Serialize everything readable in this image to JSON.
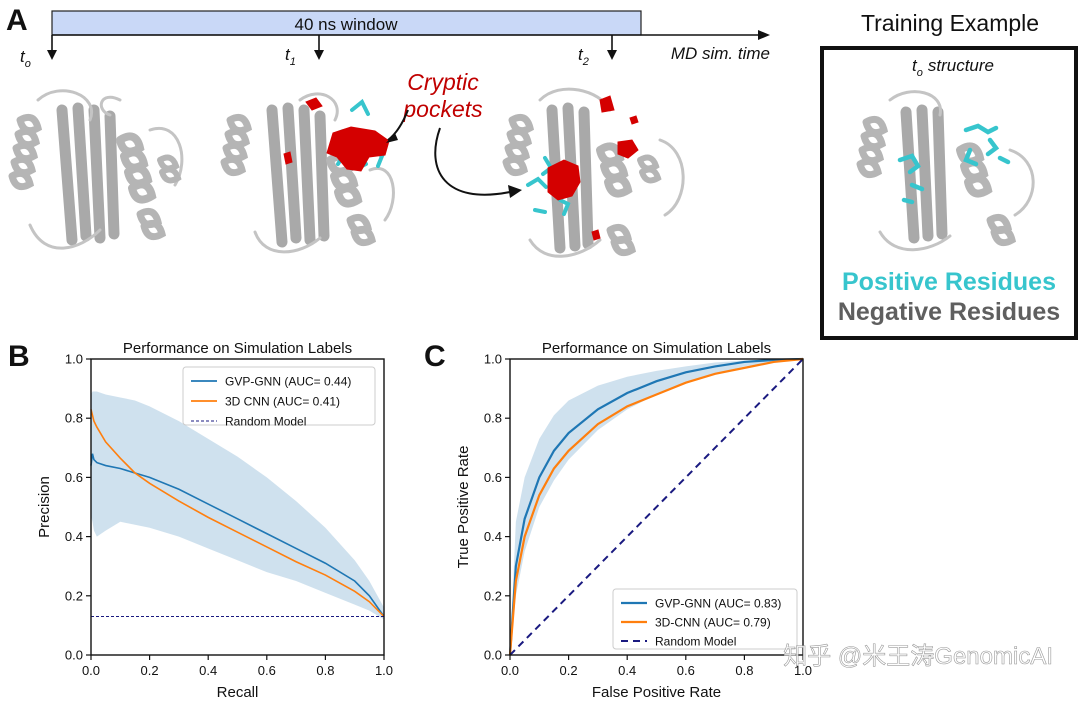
{
  "colors": {
    "cyan": "#37c5cd",
    "red": "#d40000",
    "gray": "#5f5f5f",
    "protein_gray": "#b5b5b5",
    "timeline_fill": "#c9d8f7",
    "gvp": "#1f77b4",
    "cnn": "#ff7f0e",
    "random": "#1a1a80",
    "band": "#c7dceb"
  },
  "panel_a": {
    "letter": "A",
    "window_label": "40 ns window",
    "t0": "t",
    "t0_sub": "o",
    "t1": "t",
    "t1_sub": "1",
    "t2": "t",
    "t2_sub": "2",
    "axis_label": "MD sim. time",
    "cryptic_label": "Cryptic",
    "pockets_label": "pockets",
    "training_title": "Training Example",
    "structure_t": "t",
    "structure_sub": "o",
    "structure_label": "structure",
    "positive_label": "Positive Residues",
    "negative_label": "Negative Residues"
  },
  "panel_b": {
    "letter": "B"
  },
  "panel_c": {
    "letter": "C"
  },
  "watermark": "知乎 @米王涛GenomicAI",
  "chart_data": [
    {
      "type": "line",
      "title": "Performance on Simulation Labels",
      "xlabel": "Recall",
      "ylabel": "Precision",
      "xlim": [
        0,
        1
      ],
      "ylim": [
        0,
        1
      ],
      "xticks": [
        "0.0",
        "0.2",
        "0.4",
        "0.6",
        "0.8",
        "1.0"
      ],
      "yticks": [
        "0.0",
        "0.2",
        "0.4",
        "0.6",
        "0.8",
        "1.0"
      ],
      "grid": false,
      "legend_position": "top-right",
      "series": [
        {
          "name": "GVP-GNN (AUC= 0.44)",
          "x": [
            0.0,
            0.005,
            0.01,
            0.02,
            0.05,
            0.1,
            0.15,
            0.2,
            0.3,
            0.4,
            0.5,
            0.6,
            0.7,
            0.8,
            0.9,
            0.95,
            1.0
          ],
          "y": [
            0.64,
            0.68,
            0.66,
            0.65,
            0.64,
            0.63,
            0.615,
            0.6,
            0.56,
            0.51,
            0.46,
            0.41,
            0.36,
            0.31,
            0.25,
            0.2,
            0.13
          ],
          "band_lower": [
            0.47,
            0.45,
            0.42,
            0.4,
            0.42,
            0.45,
            0.44,
            0.43,
            0.4,
            0.36,
            0.32,
            0.28,
            0.25,
            0.21,
            0.17,
            0.15,
            0.12
          ],
          "band_upper": [
            0.88,
            0.89,
            0.89,
            0.89,
            0.88,
            0.87,
            0.86,
            0.84,
            0.79,
            0.73,
            0.67,
            0.6,
            0.52,
            0.43,
            0.32,
            0.25,
            0.16
          ]
        },
        {
          "name": "3D CNN (AUC= 0.41)",
          "x": [
            0.0,
            0.005,
            0.01,
            0.02,
            0.05,
            0.1,
            0.15,
            0.2,
            0.3,
            0.4,
            0.5,
            0.6,
            0.7,
            0.8,
            0.9,
            0.95,
            1.0
          ],
          "y": [
            0.83,
            0.81,
            0.79,
            0.77,
            0.72,
            0.665,
            0.615,
            0.58,
            0.52,
            0.465,
            0.415,
            0.365,
            0.315,
            0.27,
            0.215,
            0.18,
            0.13
          ]
        },
        {
          "name": "Random Model",
          "x": [
            0,
            1
          ],
          "y": [
            0.13,
            0.13
          ]
        }
      ]
    },
    {
      "type": "line",
      "title": "Performance on Simulation Labels",
      "xlabel": "False Positive Rate",
      "ylabel": "True Positive Rate",
      "xlim": [
        0,
        1
      ],
      "ylim": [
        0,
        1
      ],
      "xticks": [
        "0.0",
        "0.2",
        "0.4",
        "0.6",
        "0.8",
        "1.0"
      ],
      "yticks": [
        "0.0",
        "0.2",
        "0.4",
        "0.6",
        "0.8",
        "1.0"
      ],
      "grid": false,
      "legend_position": "bottom-right",
      "series": [
        {
          "name": "GVP-GNN (AUC= 0.83)",
          "x": [
            0.0,
            0.02,
            0.05,
            0.1,
            0.15,
            0.2,
            0.3,
            0.4,
            0.5,
            0.6,
            0.7,
            0.8,
            0.9,
            1.0
          ],
          "y": [
            0.0,
            0.3,
            0.46,
            0.6,
            0.69,
            0.75,
            0.83,
            0.885,
            0.925,
            0.955,
            0.975,
            0.99,
            0.997,
            1.0
          ],
          "band_lower": [
            0.0,
            0.2,
            0.35,
            0.5,
            0.59,
            0.66,
            0.76,
            0.83,
            0.88,
            0.92,
            0.95,
            0.975,
            0.99,
            1.0
          ],
          "band_upper": [
            0.0,
            0.45,
            0.6,
            0.73,
            0.81,
            0.86,
            0.91,
            0.94,
            0.96,
            0.975,
            0.988,
            0.995,
            0.999,
            1.0
          ]
        },
        {
          "name": "3D-CNN (AUC= 0.79)",
          "x": [
            0.0,
            0.02,
            0.05,
            0.1,
            0.15,
            0.2,
            0.3,
            0.4,
            0.5,
            0.6,
            0.7,
            0.8,
            0.9,
            1.0
          ],
          "y": [
            0.0,
            0.25,
            0.4,
            0.54,
            0.63,
            0.69,
            0.78,
            0.84,
            0.88,
            0.92,
            0.95,
            0.97,
            0.99,
            1.0
          ]
        },
        {
          "name": "Random Model",
          "x": [
            0,
            1
          ],
          "y": [
            0,
            1
          ]
        }
      ]
    }
  ]
}
